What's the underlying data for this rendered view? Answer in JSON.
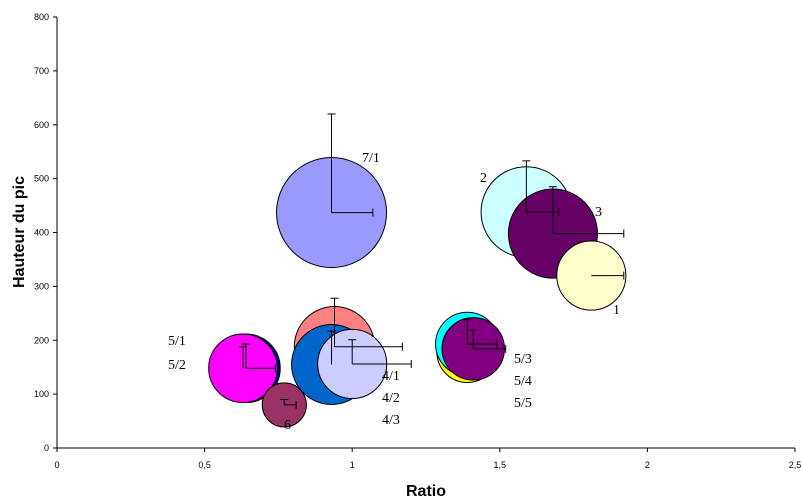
{
  "chart_data": {
    "type": "scatter",
    "subtype": "bubble",
    "xlabel": "Ratio",
    "ylabel": "Hauteur du pic",
    "xlim": [
      0,
      2.5
    ],
    "ylim": [
      0,
      800
    ],
    "x_ticks": [
      "0",
      "0,5",
      "1",
      "1,5",
      "2",
      "2,5"
    ],
    "x_tick_values": [
      0,
      0.5,
      1,
      1.5,
      2,
      2.5
    ],
    "y_ticks": [
      "0",
      "100",
      "200",
      "300",
      "400",
      "500",
      "600",
      "700",
      "800"
    ],
    "y_tick_values": [
      0,
      100,
      200,
      300,
      400,
      500,
      600,
      700,
      800
    ],
    "grid": false,
    "legend": "none",
    "points": [
      {
        "label": "7/1",
        "x": 0.93,
        "y": 437,
        "size": 180,
        "xerr": 0.14,
        "yerr": 183,
        "color": "#9999ff"
      },
      {
        "label": "2",
        "x": 1.59,
        "y": 438,
        "size": 122,
        "xerr": 0.11,
        "yerr": 95,
        "color": "#ccffff"
      },
      {
        "label": "3",
        "x": 1.68,
        "y": 398,
        "size": 118,
        "xerr": 0.24,
        "yerr": 87,
        "color": "#660066"
      },
      {
        "label": "1",
        "x": 1.81,
        "y": 320,
        "size": 71,
        "xerr": 0.11,
        "yerr": 0,
        "color": "#ffffcc"
      },
      {
        "label": "",
        "x": 0.94,
        "y": 188,
        "size": 96,
        "xerr": 0.23,
        "yerr": 90,
        "color": "#ff8080"
      },
      {
        "label": "",
        "x": 0.93,
        "y": 155,
        "size": 95,
        "xerr": 0.0,
        "yerr": 62,
        "color": "#0066cc"
      },
      {
        "label": "4/1",
        "x": 1.0,
        "y": 156,
        "size": 71,
        "xerr": 0.2,
        "yerr": 45,
        "color": "#ccccff"
      },
      {
        "label": "4/2",
        "x": 1.0,
        "y": 156,
        "size": 0,
        "xerr": 0,
        "yerr": 0,
        "color": "#ccccff"
      },
      {
        "label": "4/3",
        "x": 1.0,
        "y": 156,
        "size": 0,
        "xerr": 0,
        "yerr": 0,
        "color": "#ccccff"
      },
      {
        "label": "5/1",
        "x": 0.64,
        "y": 148,
        "size": 70,
        "xerr": 0.1,
        "yerr": 45,
        "color": "#000080"
      },
      {
        "label": "5/2",
        "x": 0.63,
        "y": 148,
        "size": 70,
        "xerr": 0.0,
        "yerr": 40,
        "color": "#ff00ff"
      },
      {
        "label": "6",
        "x": 0.77,
        "y": 80,
        "size": 29,
        "xerr": 0.04,
        "yerr": 10,
        "color": "#993366"
      },
      {
        "label": "",
        "x": 1.39,
        "y": 178,
        "size": 55,
        "xerr": 0.0,
        "yerr": 0,
        "color": "#ffff00"
      },
      {
        "label": "",
        "x": 1.39,
        "y": 193,
        "size": 60,
        "xerr": 0.1,
        "yerr": 45,
        "color": "#00ffff"
      },
      {
        "label": "5/3",
        "x": 1.41,
        "y": 184,
        "size": 58,
        "xerr": 0.11,
        "yerr": 35,
        "color": "#800080"
      },
      {
        "label": "5/4",
        "x": 1.41,
        "y": 184,
        "size": 0,
        "xerr": 0,
        "yerr": 0,
        "color": "#800080"
      },
      {
        "label": "5/5",
        "x": 1.41,
        "y": 184,
        "size": 0,
        "xerr": 0,
        "yerr": 0,
        "color": "#800080"
      }
    ]
  }
}
